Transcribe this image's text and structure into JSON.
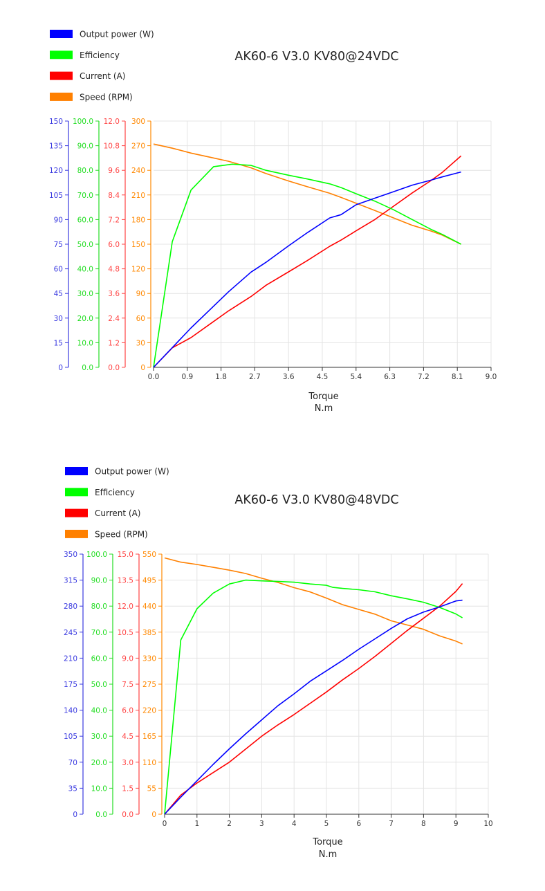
{
  "charts": [
    {
      "title": "AK60-6 V3.0 KV80@24VDC",
      "xlabel": "Torque",
      "xunit": "N.m",
      "legend": [
        {
          "label": "Output power (W)",
          "color": "#0000ff"
        },
        {
          "label": "Efficiency",
          "color": "#00ff00"
        },
        {
          "label": "Current (A)",
          "color": "#ff0000"
        },
        {
          "label": "Speed (RPM)",
          "color": "#ff8000"
        }
      ]
    },
    {
      "title": "AK60-6 V3.0 KV80@48VDC",
      "xlabel": "Torque",
      "xunit": "N.m",
      "legend": [
        {
          "label": "Output power (W)",
          "color": "#0000ff"
        },
        {
          "label": "Efficiency",
          "color": "#00ff00"
        },
        {
          "label": "Current (A)",
          "color": "#ff0000"
        },
        {
          "label": "Speed (RPM)",
          "color": "#ff8000"
        }
      ]
    }
  ],
  "chart_data": [
    {
      "type": "line",
      "title": "AK60-6 V3.0 KV80@24VDC",
      "xlabel": "Torque",
      "xunit": "N.m",
      "x_range": [
        0,
        9.0
      ],
      "x_ticks": [
        "0.0",
        "0.9",
        "1.8",
        "2.7",
        "3.6",
        "4.5",
        "5.4",
        "6.3",
        "7.2",
        "8.1",
        "9.0"
      ],
      "grid": true,
      "legend_position": "top-left",
      "axes": [
        {
          "name": "Output power (W)",
          "color": "#3a3ae0",
          "range": [
            0,
            150
          ],
          "ticks": [
            "0",
            "15",
            "30",
            "45",
            "60",
            "75",
            "90",
            "105",
            "120",
            "135",
            "150"
          ]
        },
        {
          "name": "Efficiency",
          "color": "#22dd22",
          "range": [
            0,
            100
          ],
          "ticks": [
            "0.0",
            "10.0",
            "20.0",
            "30.0",
            "40.0",
            "50.0",
            "60.0",
            "70.0",
            "80.0",
            "90.0",
            "100.0"
          ]
        },
        {
          "name": "Current (A)",
          "color": "#ff4444",
          "range": [
            0,
            12
          ],
          "ticks": [
            "0.0",
            "1.2",
            "2.4",
            "3.6",
            "4.8",
            "6.0",
            "7.2",
            "8.4",
            "9.6",
            "10.8",
            "12.0"
          ]
        },
        {
          "name": "Speed (RPM)",
          "color": "#ff8800",
          "range": [
            0,
            300
          ],
          "ticks": [
            "0",
            "30",
            "60",
            "90",
            "120",
            "150",
            "180",
            "210",
            "240",
            "270",
            "300"
          ]
        }
      ],
      "series": [
        {
          "name": "Output power (W)",
          "color": "#0000ff",
          "points": [
            [
              0,
              0
            ],
            [
              0.5,
              12
            ],
            [
              1.0,
              24
            ],
            [
              1.5,
              35
            ],
            [
              2.0,
              46
            ],
            [
              2.6,
              58
            ],
            [
              3.0,
              64
            ],
            [
              3.6,
              74
            ],
            [
              4.1,
              82
            ],
            [
              4.7,
              91
            ],
            [
              5.0,
              93
            ],
            [
              5.4,
              99
            ],
            [
              5.9,
              103
            ],
            [
              6.4,
              107
            ],
            [
              6.9,
              111
            ],
            [
              7.4,
              114
            ],
            [
              7.7,
              116
            ],
            [
              8.2,
              119
            ]
          ]
        },
        {
          "name": "Efficiency",
          "color": "#00ff00",
          "points": [
            [
              0,
              0
            ],
            [
              0.5,
              51
            ],
            [
              1.0,
              72
            ],
            [
              1.6,
              81.5
            ],
            [
              2.1,
              82.5
            ],
            [
              2.6,
              82
            ],
            [
              3.0,
              80
            ],
            [
              3.6,
              78
            ],
            [
              4.1,
              76.5
            ],
            [
              4.7,
              74.5
            ],
            [
              5.0,
              73
            ],
            [
              5.4,
              70.5
            ],
            [
              5.9,
              67.5
            ],
            [
              6.4,
              64
            ],
            [
              6.9,
              60
            ],
            [
              7.4,
              56
            ],
            [
              7.7,
              54
            ],
            [
              8.2,
              50
            ]
          ]
        },
        {
          "name": "Current (A)",
          "color": "#ff0000",
          "points": [
            [
              0,
              0
            ],
            [
              0.5,
              0.95
            ],
            [
              1.0,
              1.45
            ],
            [
              1.5,
              2.1
            ],
            [
              2.0,
              2.75
            ],
            [
              2.6,
              3.45
            ],
            [
              3.0,
              4.0
            ],
            [
              3.6,
              4.65
            ],
            [
              4.1,
              5.2
            ],
            [
              4.7,
              5.9
            ],
            [
              5.0,
              6.2
            ],
            [
              5.4,
              6.65
            ],
            [
              5.9,
              7.2
            ],
            [
              6.4,
              7.85
            ],
            [
              6.9,
              8.5
            ],
            [
              7.4,
              9.1
            ],
            [
              7.7,
              9.5
            ],
            [
              8.2,
              10.3
            ]
          ]
        },
        {
          "name": "Speed (RPM)",
          "color": "#ff8000",
          "points": [
            [
              0,
              272
            ],
            [
              0.5,
              267
            ],
            [
              1.0,
              261
            ],
            [
              1.5,
              256
            ],
            [
              2.0,
              251
            ],
            [
              2.6,
              243
            ],
            [
              3.0,
              236
            ],
            [
              3.6,
              227
            ],
            [
              4.1,
              220
            ],
            [
              4.7,
              212
            ],
            [
              5.0,
              207
            ],
            [
              5.4,
              200
            ],
            [
              5.9,
              191
            ],
            [
              6.4,
              182
            ],
            [
              6.9,
              173
            ],
            [
              7.4,
              166
            ],
            [
              7.7,
              161
            ],
            [
              8.2,
              150
            ]
          ]
        }
      ]
    },
    {
      "type": "line",
      "title": "AK60-6 V3.0 KV80@48VDC",
      "xlabel": "Torque",
      "xunit": "N.m",
      "x_range": [
        0,
        10
      ],
      "x_ticks": [
        "0",
        "1",
        "2",
        "3",
        "4",
        "5",
        "6",
        "7",
        "8",
        "9",
        "10"
      ],
      "grid": true,
      "legend_position": "top-left",
      "axes": [
        {
          "name": "Output power (W)",
          "color": "#3a3ae0",
          "range": [
            0,
            350
          ],
          "ticks": [
            "0",
            "35",
            "70",
            "105",
            "140",
            "175",
            "210",
            "245",
            "280",
            "315",
            "350"
          ]
        },
        {
          "name": "Efficiency",
          "color": "#22dd22",
          "range": [
            0,
            100
          ],
          "ticks": [
            "0.0",
            "10.0",
            "20.0",
            "30.0",
            "40.0",
            "50.0",
            "60.0",
            "70.0",
            "80.0",
            "90.0",
            "100.0"
          ]
        },
        {
          "name": "Current (A)",
          "color": "#ff4444",
          "range": [
            0,
            15
          ],
          "ticks": [
            "0.0",
            "1.5",
            "3.0",
            "4.5",
            "6.0",
            "7.5",
            "9.0",
            "10.5",
            "12.0",
            "13.5",
            "15.0"
          ]
        },
        {
          "name": "Speed (RPM)",
          "color": "#ff8800",
          "range": [
            0,
            550
          ],
          "ticks": [
            "0",
            "55",
            "110",
            "165",
            "220",
            "275",
            "330",
            "385",
            "440",
            "495",
            "550"
          ]
        }
      ],
      "series": [
        {
          "name": "Output power (W)",
          "color": "#0000ff",
          "points": [
            [
              0,
              0
            ],
            [
              0.5,
              23
            ],
            [
              1.0,
              45
            ],
            [
              1.5,
              67
            ],
            [
              2.0,
              88
            ],
            [
              2.5,
              108
            ],
            [
              3.0,
              127
            ],
            [
              3.5,
              146
            ],
            [
              4.0,
              162
            ],
            [
              4.5,
              179
            ],
            [
              5.0,
              193
            ],
            [
              5.5,
              207
            ],
            [
              6.0,
              222
            ],
            [
              6.5,
              236
            ],
            [
              7.0,
              250
            ],
            [
              7.5,
              263
            ],
            [
              8.0,
              272
            ],
            [
              8.5,
              279
            ],
            [
              9.0,
              287
            ],
            [
              9.2,
              288
            ]
          ]
        },
        {
          "name": "Efficiency",
          "color": "#00ff00",
          "points": [
            [
              0,
              0
            ],
            [
              0.5,
              67
            ],
            [
              1.0,
              79
            ],
            [
              1.5,
              85
            ],
            [
              2.0,
              88.5
            ],
            [
              2.5,
              90
            ],
            [
              3.0,
              89.7
            ],
            [
              3.5,
              89.5
            ],
            [
              4.0,
              89.2
            ],
            [
              4.5,
              88.5
            ],
            [
              5.0,
              88
            ],
            [
              5.2,
              87.2
            ],
            [
              5.5,
              86.8
            ],
            [
              6.0,
              86.3
            ],
            [
              6.5,
              85.5
            ],
            [
              7.0,
              84
            ],
            [
              7.5,
              82.8
            ],
            [
              8.0,
              81.5
            ],
            [
              8.5,
              79.5
            ],
            [
              9.0,
              77
            ],
            [
              9.2,
              75.5
            ]
          ]
        },
        {
          "name": "Current (A)",
          "color": "#ff0000",
          "points": [
            [
              0,
              0
            ],
            [
              0.5,
              1.1
            ],
            [
              1.0,
              1.8
            ],
            [
              1.5,
              2.4
            ],
            [
              2.0,
              3.0
            ],
            [
              2.5,
              3.75
            ],
            [
              3.0,
              4.5
            ],
            [
              3.5,
              5.15
            ],
            [
              4.0,
              5.75
            ],
            [
              4.5,
              6.4
            ],
            [
              5.0,
              7.05
            ],
            [
              5.5,
              7.75
            ],
            [
              6.0,
              8.4
            ],
            [
              6.5,
              9.1
            ],
            [
              7.0,
              9.85
            ],
            [
              7.5,
              10.6
            ],
            [
              8.0,
              11.3
            ],
            [
              8.5,
              12.0
            ],
            [
              9.0,
              12.85
            ],
            [
              9.2,
              13.3
            ]
          ]
        },
        {
          "name": "Speed (RPM)",
          "color": "#ff8000",
          "points": [
            [
              0,
              542
            ],
            [
              0.5,
              533
            ],
            [
              1.0,
              528
            ],
            [
              1.5,
              522
            ],
            [
              2.0,
              516
            ],
            [
              2.5,
              509
            ],
            [
              3.0,
              499
            ],
            [
              3.5,
              490
            ],
            [
              4.0,
              479
            ],
            [
              4.5,
              470
            ],
            [
              5.0,
              457
            ],
            [
              5.5,
              443
            ],
            [
              6.0,
              433
            ],
            [
              6.5,
              423
            ],
            [
              7.0,
              409
            ],
            [
              7.5,
              400
            ],
            [
              8.0,
              391
            ],
            [
              8.5,
              377
            ],
            [
              9.0,
              366
            ],
            [
              9.2,
              360
            ]
          ]
        }
      ]
    }
  ]
}
